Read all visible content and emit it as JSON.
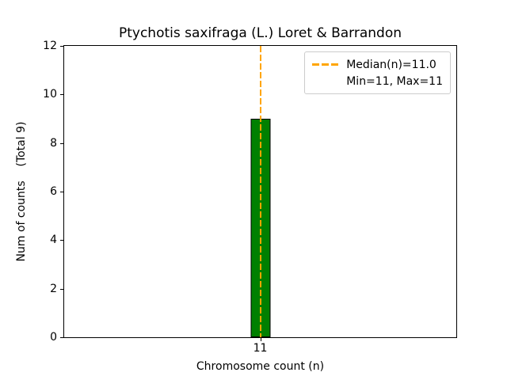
{
  "legend": {
    "median_label": "Median(n)=11.0",
    "minmax_label": "Min=11, Max=11"
  },
  "chart_data": {
    "type": "bar",
    "title": "Ptychotis saxifraga (L.) Loret & Barrandon",
    "categories": [
      "11"
    ],
    "values": [
      9
    ],
    "xlabel": "Chromosome count (n)",
    "ylabel": "Num of counts    (Total 9)",
    "ylim": [
      0,
      12
    ],
    "yticks": [
      0,
      2,
      4,
      6,
      8,
      10,
      12
    ],
    "total_counts": 9,
    "bar_color": "#008000",
    "bar_edge_color": "#000000",
    "median_line": {
      "value": 11.0,
      "color": "#FFA500",
      "style": "dashed",
      "label": "Median(n)=11.0"
    },
    "annotations": [
      "Min=11, Max=11"
    ],
    "legend_position": "upper right",
    "grid": false
  }
}
